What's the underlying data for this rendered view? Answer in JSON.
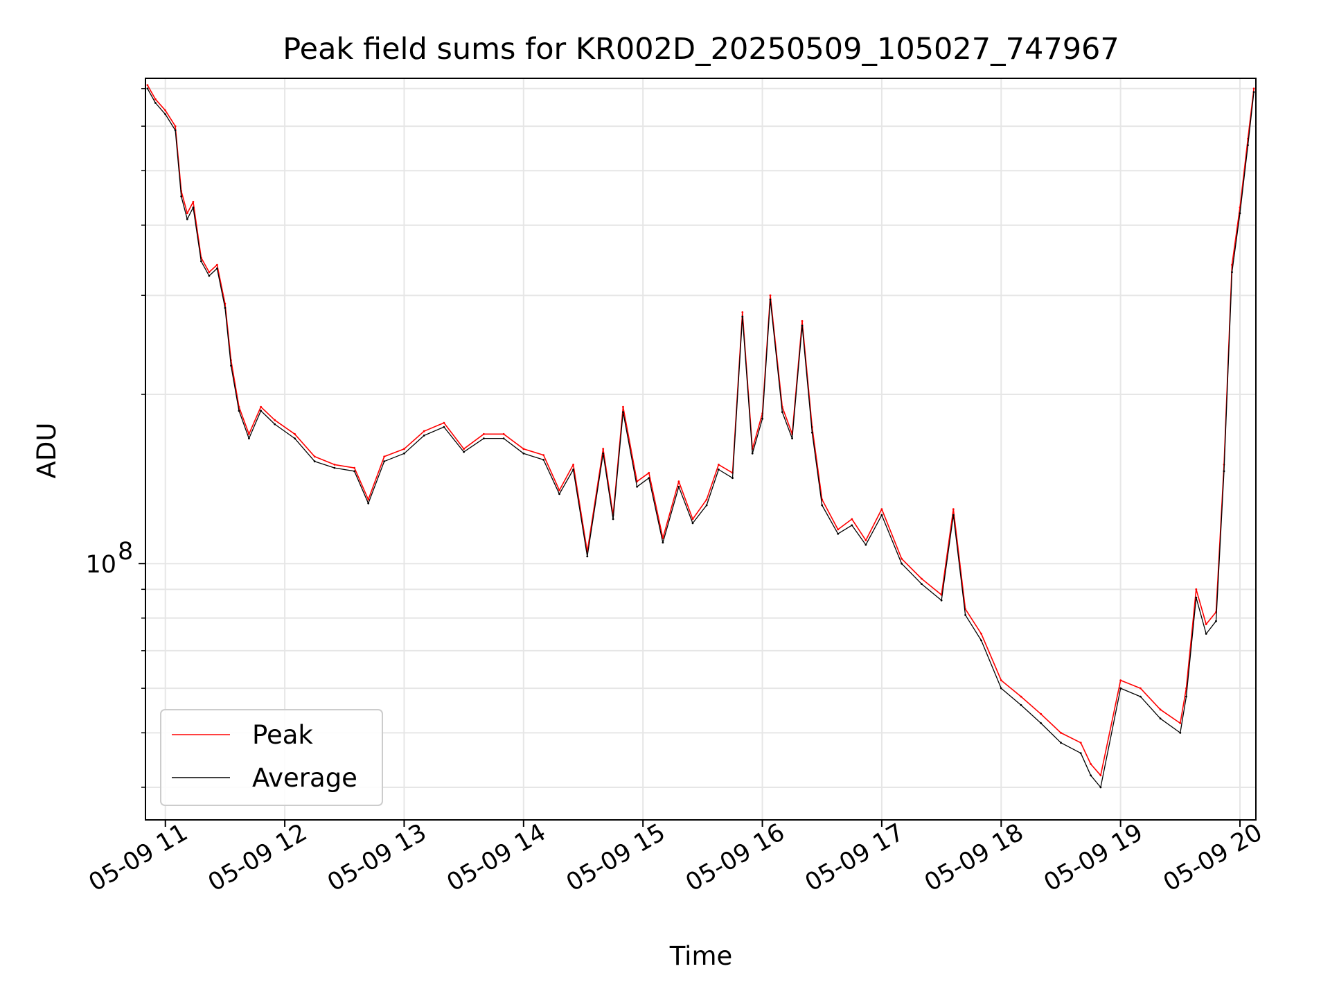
{
  "chart_data": {
    "type": "line",
    "title": "Peak field sums for KR002D_20250509_105027_747967",
    "xlabel": "Time",
    "ylabel": "ADU",
    "yscale": "log",
    "ylim": [
      35000000,
      730000000
    ],
    "xlim": [
      "2025-05-09T10:50",
      "2025-05-09T20:08"
    ],
    "x_ticks": [
      "05-09 11",
      "05-09 12",
      "05-09 13",
      "05-09 14",
      "05-09 15",
      "05-09 16",
      "05-09 17",
      "05-09 18",
      "05-09 19",
      "05-09 20"
    ],
    "x_tick_times": [
      "2025-05-09T11:00",
      "2025-05-09T12:00",
      "2025-05-09T13:00",
      "2025-05-09T14:00",
      "2025-05-09T15:00",
      "2025-05-09T16:00",
      "2025-05-09T17:00",
      "2025-05-09T18:00",
      "2025-05-09T19:00",
      "2025-05-09T20:00"
    ],
    "y_ticks": [
      {
        "value": 100000000,
        "label": "10",
        "exponent": "8"
      }
    ],
    "y_minor_ticks": [
      40000000,
      50000000,
      60000000,
      70000000,
      80000000,
      90000000,
      200000000,
      300000000,
      400000000,
      500000000,
      600000000,
      700000000
    ],
    "grid": true,
    "legend": "lower-left",
    "colors": {
      "Peak": "#ff0000",
      "Average": "#000000"
    },
    "x": [
      "2025-05-09T10:51",
      "2025-05-09T10:55",
      "2025-05-09T11:00",
      "2025-05-09T11:05",
      "2025-05-09T11:08",
      "2025-05-09T11:11",
      "2025-05-09T11:14",
      "2025-05-09T11:18",
      "2025-05-09T11:22",
      "2025-05-09T11:26",
      "2025-05-09T11:30",
      "2025-05-09T11:33",
      "2025-05-09T11:37",
      "2025-05-09T11:42",
      "2025-05-09T11:48",
      "2025-05-09T11:55",
      "2025-05-09T12:05",
      "2025-05-09T12:15",
      "2025-05-09T12:25",
      "2025-05-09T12:35",
      "2025-05-09T12:42",
      "2025-05-09T12:50",
      "2025-05-09T13:00",
      "2025-05-09T13:10",
      "2025-05-09T13:20",
      "2025-05-09T13:30",
      "2025-05-09T13:40",
      "2025-05-09T13:50",
      "2025-05-09T14:00",
      "2025-05-09T14:10",
      "2025-05-09T14:18",
      "2025-05-09T14:25",
      "2025-05-09T14:32",
      "2025-05-09T14:40",
      "2025-05-09T14:45",
      "2025-05-09T14:50",
      "2025-05-09T14:57",
      "2025-05-09T15:03",
      "2025-05-09T15:10",
      "2025-05-09T15:18",
      "2025-05-09T15:25",
      "2025-05-09T15:32",
      "2025-05-09T15:38",
      "2025-05-09T15:45",
      "2025-05-09T15:50",
      "2025-05-09T15:55",
      "2025-05-09T16:00",
      "2025-05-09T16:04",
      "2025-05-09T16:10",
      "2025-05-09T16:15",
      "2025-05-09T16:20",
      "2025-05-09T16:25",
      "2025-05-09T16:30",
      "2025-05-09T16:38",
      "2025-05-09T16:45",
      "2025-05-09T16:52",
      "2025-05-09T17:00",
      "2025-05-09T17:10",
      "2025-05-09T17:20",
      "2025-05-09T17:30",
      "2025-05-09T17:36",
      "2025-05-09T17:42",
      "2025-05-09T17:50",
      "2025-05-09T18:00",
      "2025-05-09T18:10",
      "2025-05-09T18:20",
      "2025-05-09T18:30",
      "2025-05-09T18:40",
      "2025-05-09T18:45",
      "2025-05-09T18:50",
      "2025-05-09T19:00",
      "2025-05-09T19:10",
      "2025-05-09T19:20",
      "2025-05-09T19:30",
      "2025-05-09T19:33",
      "2025-05-09T19:38",
      "2025-05-09T19:43",
      "2025-05-09T19:48",
      "2025-05-09T19:52",
      "2025-05-09T19:56",
      "2025-05-09T20:00",
      "2025-05-09T20:04",
      "2025-05-09T20:07"
    ],
    "series": [
      {
        "name": "Peak",
        "values": [
          710000000,
          670000000,
          640000000,
          600000000,
          460000000,
          420000000,
          440000000,
          350000000,
          330000000,
          340000000,
          290000000,
          230000000,
          190000000,
          170000000,
          190000000,
          180000000,
          170000000,
          155000000,
          150000000,
          148000000,
          130000000,
          155000000,
          160000000,
          172000000,
          178000000,
          160000000,
          170000000,
          170000000,
          160000000,
          156000000,
          135000000,
          150000000,
          105000000,
          160000000,
          122000000,
          190000000,
          140000000,
          145000000,
          111000000,
          140000000,
          120000000,
          130000000,
          150000000,
          145000000,
          280000000,
          160000000,
          185000000,
          300000000,
          190000000,
          170000000,
          270000000,
          175000000,
          130000000,
          115000000,
          120000000,
          110000000,
          125000000,
          102000000,
          94000000,
          88000000,
          125000000,
          83000000,
          75000000,
          62000000,
          58000000,
          54000000,
          50000000,
          48000000,
          44000000,
          42000000,
          62000000,
          60000000,
          55000000,
          52000000,
          60000000,
          90000000,
          78000000,
          82000000,
          150000000,
          340000000,
          430000000,
          570000000,
          700000000
        ]
      },
      {
        "name": "Average",
        "values": [
          700000000,
          660000000,
          630000000,
          590000000,
          450000000,
          410000000,
          430000000,
          345000000,
          325000000,
          335000000,
          285000000,
          225000000,
          187000000,
          167000000,
          187000000,
          177000000,
          167000000,
          152000000,
          148000000,
          146000000,
          128000000,
          152000000,
          157000000,
          169000000,
          175000000,
          158000000,
          167000000,
          167000000,
          157000000,
          153000000,
          133000000,
          147000000,
          103000000,
          157000000,
          120000000,
          186000000,
          137000000,
          142000000,
          109000000,
          137000000,
          118000000,
          127000000,
          147000000,
          142000000,
          275000000,
          157000000,
          181000000,
          295000000,
          186000000,
          167000000,
          265000000,
          171000000,
          127000000,
          113000000,
          117000000,
          108000000,
          122000000,
          100000000,
          92000000,
          86000000,
          122000000,
          81000000,
          73000000,
          60000000,
          56000000,
          52000000,
          48000000,
          46000000,
          42000000,
          40000000,
          60000000,
          58000000,
          53000000,
          50000000,
          58000000,
          87000000,
          75000000,
          79000000,
          146000000,
          330000000,
          420000000,
          555000000,
          690000000
        ]
      }
    ]
  }
}
